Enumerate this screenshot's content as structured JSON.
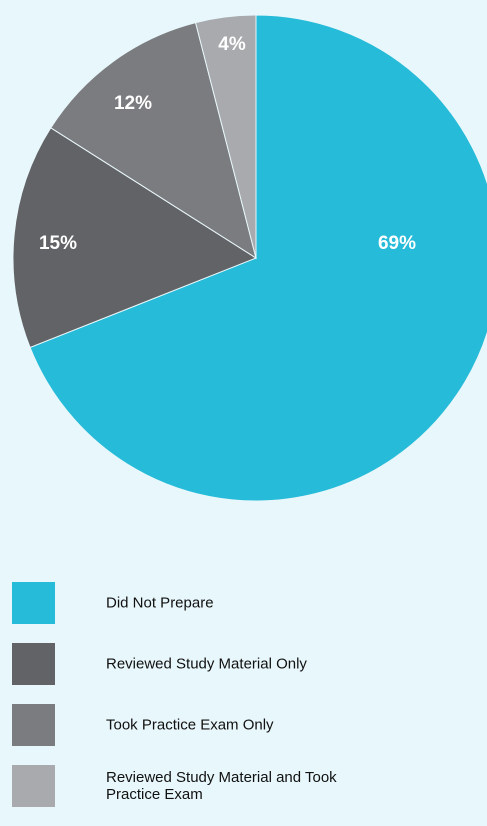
{
  "chart_data": {
    "type": "pie",
    "title": "",
    "slices": [
      {
        "label": "Did Not Prepare",
        "value": 69,
        "display": "69%",
        "color": "#26bbd8"
      },
      {
        "label": "Reviewed Study Material Only",
        "value": 15,
        "display": "15%",
        "color": "#626366"
      },
      {
        "label": "Took Practice Exam Only",
        "value": 12,
        "display": "12%",
        "color": "#7b7c7f"
      },
      {
        "label": "Reviewed Study Material and Took Practice Exam",
        "value": 4,
        "display": "4%",
        "color": "#a9aaad"
      }
    ],
    "legend_position": "bottom",
    "start_angle": "12 o'clock",
    "direction": "clockwise"
  },
  "legend": {
    "items": [
      {
        "label": "Did Not Prepare",
        "color": "#26bbd8"
      },
      {
        "label": "Reviewed Study Material Only",
        "color": "#626366"
      },
      {
        "label": "Took Practice Exam Only",
        "color": "#7b7c7f"
      },
      {
        "label": "Reviewed Study Material and Took Practice Exam",
        "color": "#a9aaad"
      }
    ]
  },
  "colors": {
    "background": "#e8f7fb",
    "label_text": "#ffffff",
    "legend_text": "#111111"
  }
}
